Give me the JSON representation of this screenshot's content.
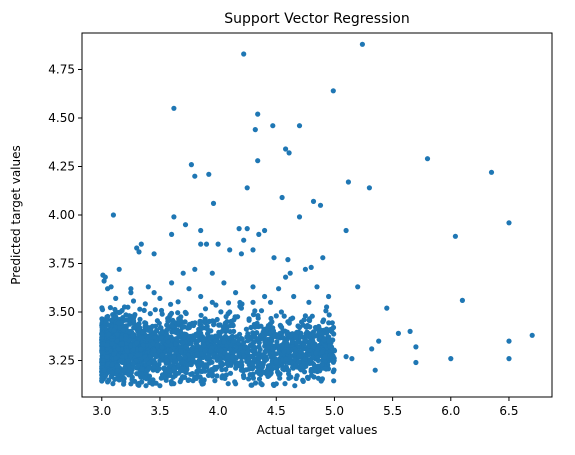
{
  "chart_data": {
    "type": "scatter",
    "title": "Support Vector Regression",
    "xlabel": "Actual target values",
    "ylabel": "Predicted target values",
    "xlim": [
      2.83,
      6.87
    ],
    "ylim": [
      3.062,
      4.938
    ],
    "xticks": [
      3.0,
      3.5,
      4.0,
      4.5,
      5.0,
      5.5,
      6.0,
      6.5
    ],
    "xtick_labels": [
      "3.0",
      "3.5",
      "4.0",
      "4.5",
      "5.0",
      "5.5",
      "6.0",
      "6.5"
    ],
    "yticks": [
      3.25,
      3.5,
      3.75,
      4.0,
      4.25,
      4.5,
      4.75
    ],
    "ytick_labels": [
      "3.25",
      "3.50",
      "3.75",
      "4.00",
      "4.25",
      "4.50",
      "4.75"
    ],
    "grid": false,
    "marker_color": "#1f77b4",
    "points": [
      [
        5.24,
        4.88
      ],
      [
        4.22,
        4.83
      ],
      [
        4.99,
        4.64
      ],
      [
        3.62,
        4.55
      ],
      [
        4.34,
        4.52
      ],
      [
        4.32,
        4.44
      ],
      [
        4.47,
        4.46
      ],
      [
        4.7,
        4.46
      ],
      [
        4.58,
        4.34
      ],
      [
        4.61,
        4.32
      ],
      [
        4.34,
        4.28
      ],
      [
        5.8,
        4.29
      ],
      [
        3.77,
        4.26
      ],
      [
        3.92,
        4.21
      ],
      [
        3.8,
        4.2
      ],
      [
        6.35,
        4.22
      ],
      [
        5.12,
        4.17
      ],
      [
        4.25,
        4.14
      ],
      [
        5.3,
        4.14
      ],
      [
        4.55,
        4.09
      ],
      [
        4.82,
        4.07
      ],
      [
        4.88,
        4.05
      ],
      [
        3.96,
        4.06
      ],
      [
        3.1,
        4.0
      ],
      [
        3.62,
        3.99
      ],
      [
        4.7,
        3.99
      ],
      [
        6.5,
        3.96
      ],
      [
        5.1,
        3.92
      ],
      [
        6.04,
        3.89
      ],
      [
        4.9,
        3.78
      ],
      [
        4.8,
        3.73
      ],
      [
        5.2,
        3.63
      ],
      [
        6.1,
        3.56
      ],
      [
        5.45,
        3.52
      ],
      [
        5.55,
        3.39
      ],
      [
        5.65,
        3.4
      ],
      [
        5.38,
        3.35
      ],
      [
        5.32,
        3.31
      ],
      [
        5.7,
        3.32
      ],
      [
        6.5,
        3.35
      ],
      [
        6.7,
        3.38
      ],
      [
        6.0,
        3.26
      ],
      [
        6.5,
        3.26
      ],
      [
        5.7,
        3.24
      ],
      [
        5.35,
        3.2
      ],
      [
        5.1,
        3.27
      ],
      [
        5.15,
        3.26
      ],
      [
        4.92,
        3.27
      ],
      [
        4.75,
        3.26
      ],
      [
        4.5,
        3.13
      ],
      [
        4.15,
        3.13
      ],
      [
        3.3,
        3.83
      ],
      [
        3.34,
        3.85
      ],
      [
        3.32,
        3.81
      ],
      [
        3.45,
        3.8
      ],
      [
        3.6,
        3.9
      ],
      [
        3.85,
        3.85
      ],
      [
        3.9,
        3.85
      ],
      [
        4.0,
        3.85
      ],
      [
        4.1,
        3.82
      ],
      [
        4.2,
        3.8
      ],
      [
        4.3,
        3.82
      ],
      [
        4.18,
        3.93
      ],
      [
        4.25,
        3.93
      ],
      [
        4.35,
        3.9
      ],
      [
        4.4,
        3.92
      ],
      [
        3.72,
        3.95
      ],
      [
        3.85,
        3.92
      ],
      [
        4.22,
        3.87
      ],
      [
        4.48,
        3.78
      ],
      [
        4.6,
        3.77
      ],
      [
        4.75,
        3.72
      ],
      [
        4.62,
        3.7
      ],
      [
        4.58,
        3.68
      ],
      [
        4.52,
        3.62
      ],
      [
        4.65,
        3.58
      ],
      [
        4.85,
        3.63
      ],
      [
        4.78,
        3.55
      ],
      [
        4.95,
        3.58
      ],
      [
        4.75,
        3.48
      ],
      [
        4.9,
        3.45
      ],
      [
        3.01,
        3.69
      ],
      [
        3.03,
        3.68
      ],
      [
        3.02,
        3.66
      ],
      [
        3.15,
        3.72
      ],
      [
        3.05,
        3.62
      ],
      [
        3.08,
        3.63
      ],
      [
        3.12,
        3.57
      ],
      [
        3.25,
        3.6
      ],
      [
        3.25,
        3.62
      ],
      [
        3.4,
        3.63
      ],
      [
        3.45,
        3.6
      ],
      [
        3.5,
        3.57
      ],
      [
        3.6,
        3.65
      ],
      [
        3.7,
        3.7
      ],
      [
        3.75,
        3.62
      ],
      [
        3.8,
        3.72
      ],
      [
        3.95,
        3.7
      ],
      [
        4.05,
        3.65
      ],
      [
        4.15,
        3.6
      ],
      [
        4.3,
        3.63
      ],
      [
        4.4,
        3.58
      ],
      [
        4.45,
        3.55
      ],
      [
        4.3,
        3.55
      ],
      [
        4.2,
        3.52
      ],
      [
        4.1,
        3.5
      ],
      [
        3.95,
        3.55
      ],
      [
        3.85,
        3.58
      ],
      [
        3.92,
        3.45
      ],
      [
        4.5,
        3.48
      ],
      [
        4.6,
        3.45
      ],
      [
        4.7,
        3.42
      ],
      [
        4.82,
        3.38
      ],
      [
        4.95,
        3.35
      ],
      [
        5.0,
        3.3
      ],
      [
        4.86,
        3.25
      ],
      [
        4.72,
        3.22
      ],
      [
        4.6,
        3.2
      ],
      [
        4.45,
        3.18
      ],
      [
        4.3,
        3.18
      ],
      [
        4.2,
        3.2
      ],
      [
        3.95,
        3.18
      ],
      [
        3.88,
        3.15
      ],
      [
        3.75,
        3.15
      ],
      [
        3.6,
        3.13
      ],
      [
        3.5,
        3.12
      ],
      [
        3.38,
        3.12
      ],
      [
        3.25,
        3.13
      ],
      [
        3.15,
        3.15
      ],
      [
        3.05,
        3.14
      ],
      [
        3.02,
        3.2
      ]
    ]
  }
}
